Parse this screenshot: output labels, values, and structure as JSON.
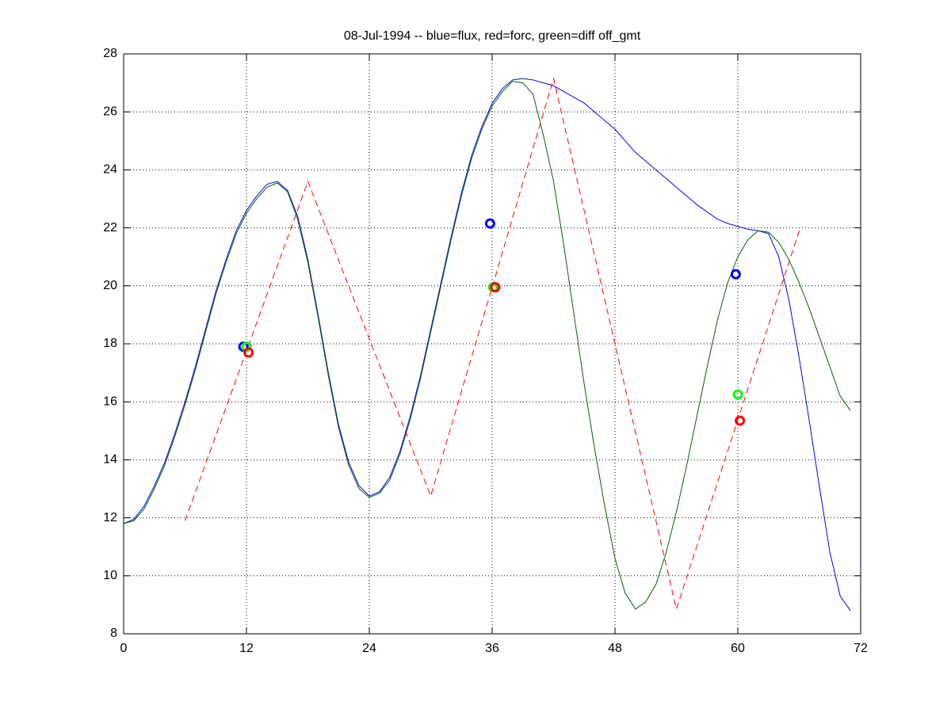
{
  "chart_data": {
    "type": "line",
    "title": "08-Jul-1994 -- blue=flux, red=forc, green=diff off_gmt",
    "xlim": [
      0,
      72
    ],
    "xticks": [
      0,
      12,
      24,
      36,
      48,
      60,
      72
    ],
    "ylim": [
      8,
      28
    ],
    "yticks": [
      8,
      10,
      12,
      14,
      16,
      18,
      20,
      22,
      24,
      26,
      28
    ],
    "grid": true,
    "series": [
      {
        "color": "#0000ff",
        "linestyle": "solid",
        "marker": "none",
        "x": [
          0,
          1,
          2,
          3,
          4,
          5,
          6,
          7,
          8,
          9,
          10,
          11,
          12,
          13,
          14,
          15,
          16,
          17,
          18,
          19,
          20,
          21,
          22,
          23,
          24,
          25,
          26,
          27,
          28,
          29,
          30,
          31,
          32,
          33,
          34,
          35,
          36,
          37,
          38,
          39,
          40,
          41,
          42,
          43,
          44,
          45,
          46,
          47,
          48,
          49,
          50,
          51,
          52,
          53,
          54,
          55,
          56,
          57,
          58,
          59,
          60,
          61,
          62,
          63,
          64,
          65,
          66,
          67,
          68,
          69,
          70,
          71
        ],
        "values": [
          11.8,
          11.95,
          12.4,
          13.1,
          13.9,
          14.9,
          16.0,
          17.2,
          18.5,
          19.8,
          20.9,
          21.9,
          22.6,
          23.1,
          23.5,
          23.6,
          23.3,
          22.4,
          20.9,
          19.0,
          17.0,
          15.2,
          13.9,
          13.1,
          12.75,
          12.9,
          13.4,
          14.3,
          15.5,
          16.9,
          18.5,
          20.1,
          21.7,
          23.2,
          24.5,
          25.5,
          26.3,
          26.8,
          27.1,
          27.15,
          27.1,
          27.0,
          26.9,
          26.7,
          26.5,
          26.3,
          26.0,
          25.7,
          25.4,
          25.0,
          24.6,
          24.3,
          24.0,
          23.7,
          23.4,
          23.1,
          22.8,
          22.55,
          22.3,
          22.15,
          22.05,
          21.95,
          21.9,
          21.8,
          21.0,
          19.5,
          17.5,
          15.3,
          13.0,
          10.8,
          9.3,
          8.8
        ]
      },
      {
        "color": "#006400",
        "linestyle": "solid",
        "marker": "none",
        "x": [
          0,
          1,
          2,
          3,
          4,
          5,
          6,
          7,
          8,
          9,
          10,
          11,
          12,
          13,
          14,
          15,
          16,
          17,
          18,
          19,
          20,
          21,
          22,
          23,
          24,
          25,
          26,
          27,
          28,
          29,
          30,
          31,
          32,
          33,
          34,
          35,
          36,
          37,
          38,
          39,
          40,
          41,
          42,
          43,
          44,
          45,
          46,
          47,
          48,
          49,
          50,
          51,
          52,
          53,
          54,
          55,
          56,
          57,
          58,
          59,
          60,
          61,
          62,
          63,
          64,
          65,
          66,
          67,
          68,
          69,
          70,
          71
        ],
        "values": [
          11.8,
          11.9,
          12.3,
          13.0,
          13.8,
          14.8,
          15.9,
          17.1,
          18.4,
          19.7,
          20.8,
          21.8,
          22.5,
          23.0,
          23.4,
          23.55,
          23.25,
          22.3,
          20.8,
          18.9,
          16.9,
          15.1,
          13.8,
          13.0,
          12.7,
          12.85,
          13.3,
          14.2,
          15.4,
          16.8,
          18.4,
          20.0,
          21.6,
          23.1,
          24.4,
          25.4,
          26.2,
          26.7,
          27.05,
          27.0,
          26.6,
          25.2,
          23.6,
          21.4,
          19.0,
          16.6,
          14.4,
          12.4,
          10.6,
          9.4,
          8.85,
          9.1,
          9.7,
          10.8,
          12.2,
          13.8,
          15.5,
          17.2,
          18.8,
          20.1,
          21.0,
          21.6,
          21.9,
          21.85,
          21.5,
          20.9,
          20.1,
          19.2,
          18.2,
          17.2,
          16.2,
          15.7
        ]
      },
      {
        "color": "#ff0000",
        "linestyle": "dashed",
        "marker": "none",
        "x": [
          6,
          18,
          30,
          42,
          54,
          66
        ],
        "values": [
          11.9,
          23.6,
          12.75,
          27.15,
          8.85,
          21.9
        ]
      },
      {
        "color": "#0000ff",
        "linestyle": "none",
        "marker": "o",
        "x": [
          11.7,
          35.8,
          59.8
        ],
        "values": [
          17.9,
          22.15,
          20.4
        ]
      },
      {
        "color": "#00ff00",
        "linestyle": "none",
        "marker": "o",
        "x": [
          12.0,
          36.1,
          60.0
        ],
        "values": [
          17.9,
          19.95,
          16.25
        ]
      },
      {
        "color": "#ff0000",
        "linestyle": "none",
        "marker": "o",
        "x": [
          12.2,
          36.3,
          60.2
        ],
        "values": [
          17.7,
          19.95,
          15.35
        ]
      }
    ]
  }
}
